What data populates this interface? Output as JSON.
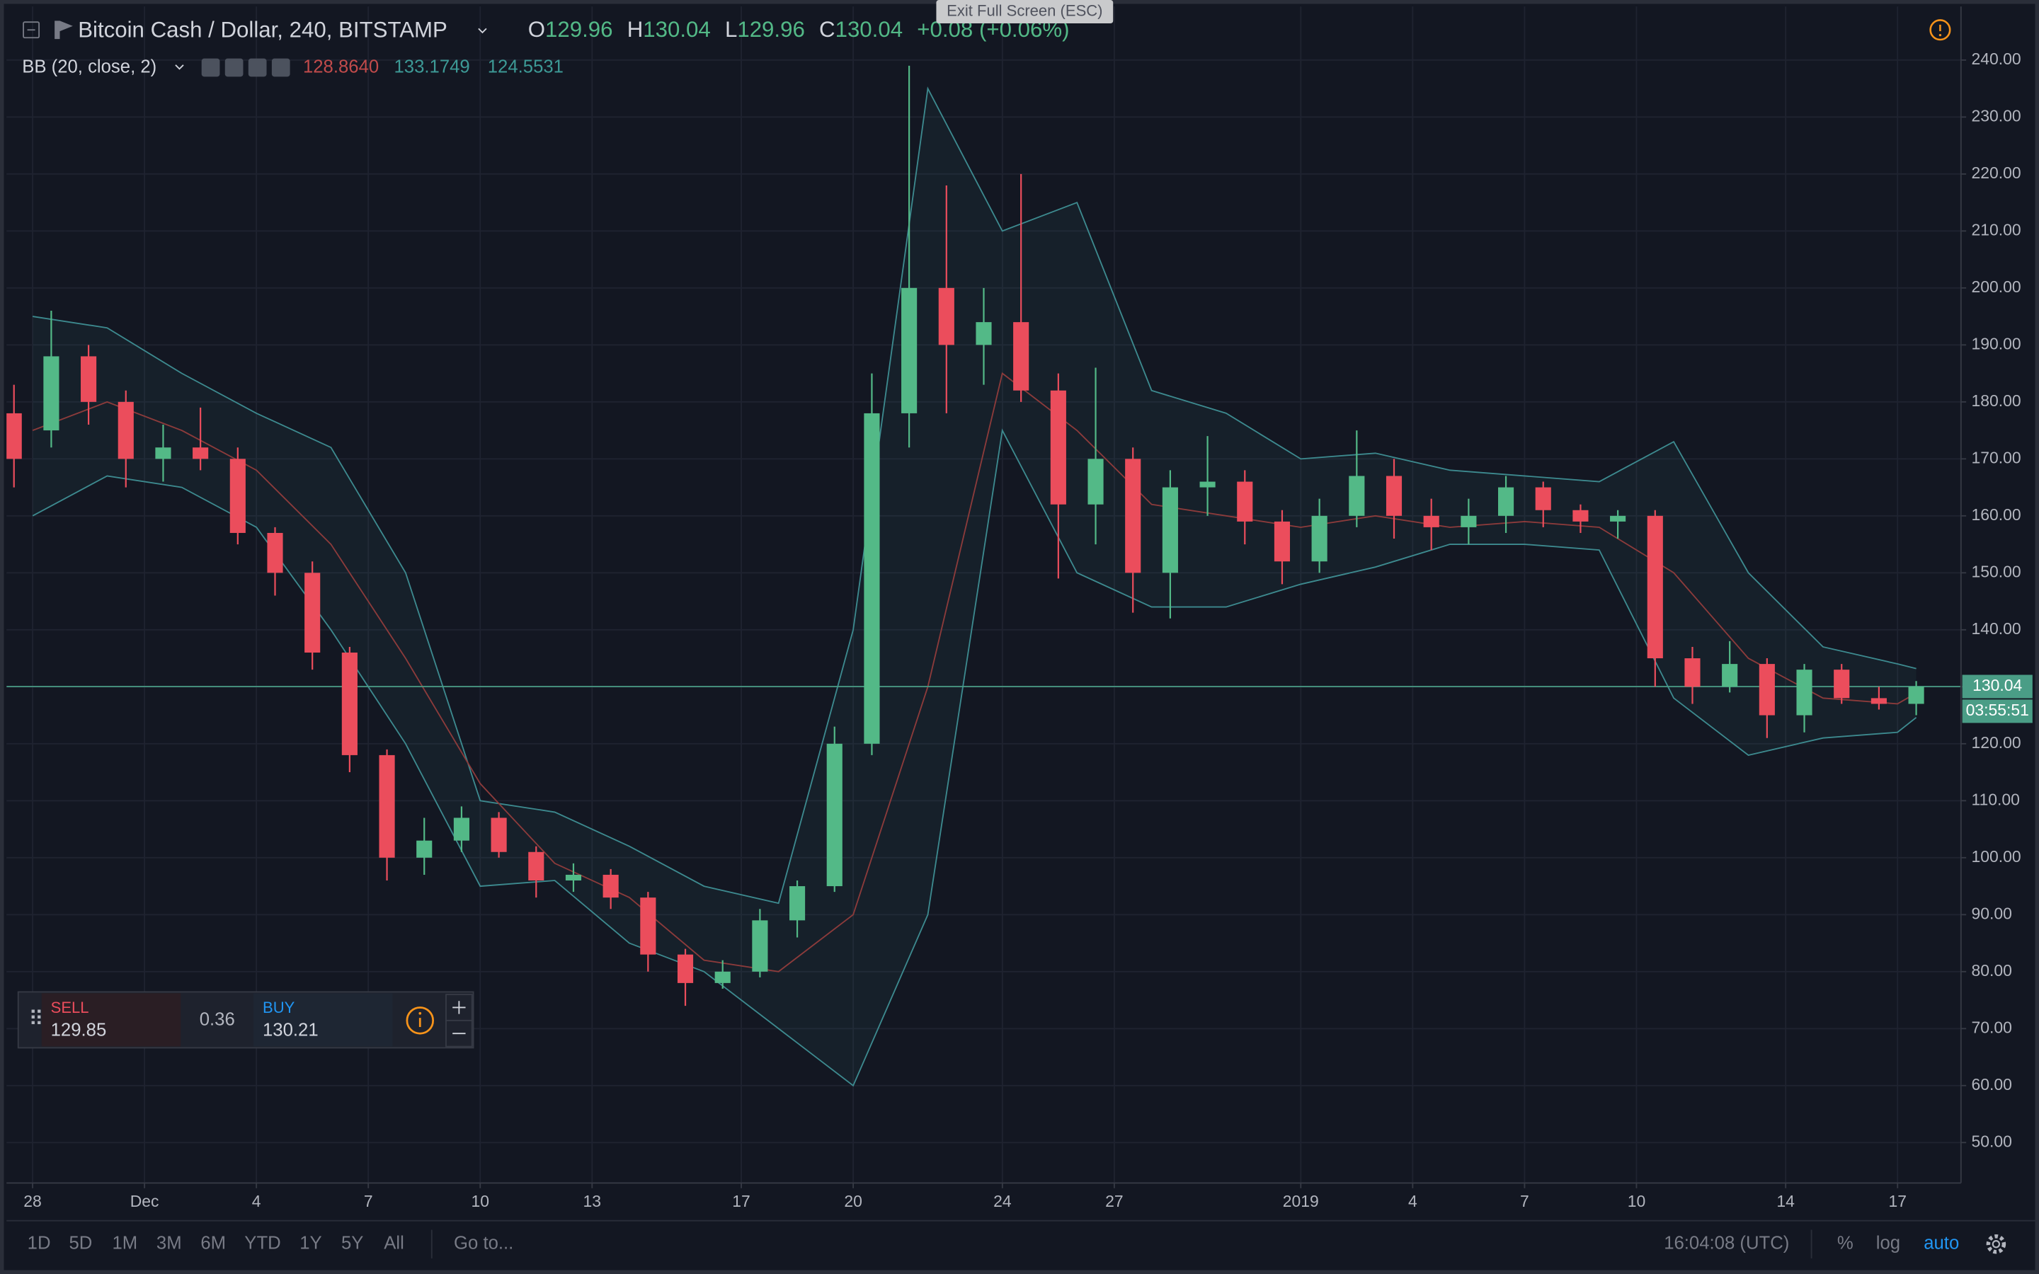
{
  "chart_data": {
    "type": "candlestick",
    "x": [
      -0.5,
      0.5,
      1.5,
      2.5,
      3.5,
      4.5,
      5.5,
      6.5,
      7.5,
      8.5,
      9.5,
      10.5,
      11.5,
      12.5,
      13.5,
      14.5,
      15.5,
      16.5,
      17.5,
      18.5,
      19.5,
      20.5,
      21.5,
      22.5,
      23.5,
      24.5,
      25.5,
      26.5,
      27.5,
      28.5,
      29.5,
      30.5,
      31.5,
      32.5,
      33.5,
      34.5,
      35.5,
      36.5,
      37.5,
      38.5,
      39.5,
      40.5,
      41.5,
      42.5,
      43.5,
      44.5,
      45.5,
      46.5,
      47.5,
      48.5,
      49.5,
      50.5
    ],
    "open": [
      178,
      175,
      188,
      180,
      170,
      172,
      170,
      157,
      150,
      136,
      118,
      100,
      103,
      107,
      101,
      96,
      97,
      93,
      83,
      78,
      80,
      89,
      95,
      120,
      178,
      200,
      190,
      194,
      182,
      162,
      170,
      150,
      165,
      166,
      159,
      152,
      160,
      167,
      160,
      158,
      160,
      165,
      161,
      159,
      160,
      135,
      130,
      134,
      125,
      133,
      128,
      127
    ],
    "high": [
      183,
      196,
      190,
      182,
      176,
      179,
      172,
      158,
      152,
      137,
      119,
      107,
      109,
      108,
      102,
      99,
      98,
      94,
      84,
      82,
      91,
      96,
      123,
      185,
      239,
      218,
      200,
      220,
      185,
      186,
      172,
      168,
      174,
      168,
      161,
      163,
      175,
      170,
      163,
      163,
      167,
      166,
      162,
      161,
      161,
      137,
      138,
      135,
      134,
      134,
      130,
      131
    ],
    "low": [
      165,
      172,
      176,
      165,
      166,
      168,
      155,
      146,
      133,
      115,
      96,
      97,
      101,
      100,
      93,
      94,
      91,
      80,
      74,
      77,
      79,
      86,
      94,
      118,
      172,
      178,
      183,
      180,
      149,
      155,
      143,
      142,
      160,
      155,
      148,
      150,
      158,
      156,
      154,
      155,
      157,
      158,
      157,
      156,
      130,
      127,
      129,
      121,
      122,
      127,
      126,
      125
    ],
    "close": [
      170,
      188,
      180,
      170,
      172,
      170,
      157,
      150,
      136,
      118,
      100,
      103,
      107,
      101,
      96,
      97,
      93,
      83,
      78,
      80,
      89,
      95,
      120,
      178,
      200,
      190,
      194,
      182,
      162,
      170,
      150,
      165,
      166,
      159,
      152,
      160,
      167,
      160,
      158,
      160,
      165,
      161,
      159,
      160,
      135,
      130,
      134,
      125,
      133,
      128,
      127,
      130.04
    ],
    "up_color": "#53b987",
    "down_color": "#eb4d5c",
    "bb": {
      "x": [
        0,
        2,
        4,
        6,
        8,
        10,
        12,
        14,
        16,
        18,
        20,
        22,
        24,
        26,
        28,
        30,
        32,
        34,
        36,
        38,
        40,
        42,
        44,
        46,
        48,
        50,
        50.5
      ],
      "upper": [
        195,
        193,
        185,
        178,
        172,
        150,
        110,
        108,
        102,
        95,
        92,
        140,
        235,
        210,
        215,
        182,
        178,
        170,
        171,
        168,
        167,
        166,
        173,
        150,
        137,
        134,
        133.2
      ],
      "middle": [
        175,
        180,
        175,
        168,
        155,
        135,
        113,
        99,
        93,
        82,
        80,
        90,
        130,
        185,
        175,
        162,
        160,
        158,
        160,
        158,
        159,
        158,
        150,
        135,
        128,
        127,
        128.9
      ],
      "lower": [
        160,
        167,
        165,
        158,
        140,
        120,
        95,
        96,
        85,
        80,
        70,
        60,
        90,
        175,
        150,
        144,
        144,
        148,
        151,
        155,
        155,
        154,
        128,
        118,
        121,
        122,
        124.6
      ],
      "band_color": "#3d8a8f",
      "middle_color": "#8c3b3b"
    },
    "last_price": 130.04,
    "last_price_color": "#4a9d86",
    "xlim": [
      -0.7,
      51.7
    ],
    "xticks": [
      {
        "value": 0,
        "label": "28"
      },
      {
        "value": 3,
        "label": "Dec"
      },
      {
        "value": 6,
        "label": "4"
      },
      {
        "value": 9,
        "label": "7"
      },
      {
        "value": 12,
        "label": "10"
      },
      {
        "value": 15,
        "label": "13"
      },
      {
        "value": 19,
        "label": "17"
      },
      {
        "value": 22,
        "label": "20"
      },
      {
        "value": 26,
        "label": "24"
      },
      {
        "value": 29,
        "label": "27"
      },
      {
        "value": 34,
        "label": "2019"
      },
      {
        "value": 37,
        "label": "4"
      },
      {
        "value": 40,
        "label": "7"
      },
      {
        "value": 43,
        "label": "10"
      },
      {
        "value": 47,
        "label": "14"
      },
      {
        "value": 50,
        "label": "17"
      }
    ],
    "ylim": [
      42.9,
      249.4
    ],
    "yticks": [
      {
        "value": 50,
        "label": "50.00"
      },
      {
        "value": 60,
        "label": "60.00"
      },
      {
        "value": 70,
        "label": "70.00"
      },
      {
        "value": 80,
        "label": "80.00"
      },
      {
        "value": 90,
        "label": "90.00"
      },
      {
        "value": 100,
        "label": "100.00"
      },
      {
        "value": 110,
        "label": "110.00"
      },
      {
        "value": 120,
        "label": "120.00"
      },
      {
        "value": 130,
        "label": "130.00"
      },
      {
        "value": 140,
        "label": "140.00"
      },
      {
        "value": 150,
        "label": "150.00"
      },
      {
        "value": 160,
        "label": "160.00"
      },
      {
        "value": 170,
        "label": "170.00"
      },
      {
        "value": 180,
        "label": "180.00"
      },
      {
        "value": 190,
        "label": "190.00"
      },
      {
        "value": 200,
        "label": "200.00"
      },
      {
        "value": 210,
        "label": "210.00"
      },
      {
        "value": 220,
        "label": "220.00"
      },
      {
        "value": 230,
        "label": "230.00"
      },
      {
        "value": 240,
        "label": "240.00"
      }
    ],
    "grid": true
  },
  "ui": {
    "exit_fullscreen": "Exit Full Screen (ESC)",
    "header": {
      "symbol": "Bitcoin Cash / Dollar, 240, BITSTAMP",
      "ohlc": [
        {
          "label": "O",
          "value": "129.96"
        },
        {
          "label": "H",
          "value": "130.04"
        },
        {
          "label": "L",
          "value": "129.96"
        },
        {
          "label": "C",
          "value": "130.04"
        }
      ],
      "change": "+0.08 (+0.06%)"
    },
    "indicator": {
      "name": "BB (20, close, 2)",
      "values": [
        "128.8640",
        "133.1749",
        "124.5531"
      ]
    },
    "countdown": "03:55:51",
    "trade": {
      "sell_label": "SELL",
      "sell_price": "129.85",
      "spread": "0.36",
      "buy_label": "BUY",
      "buy_price": "130.21"
    },
    "toolbar": {
      "ranges": [
        "1D",
        "5D",
        "1M",
        "3M",
        "6M",
        "YTD",
        "1Y",
        "5Y",
        "All"
      ],
      "goto": "Go to...",
      "clock": "16:04:08 (UTC)",
      "percent": "%",
      "log": "log",
      "auto": "auto"
    }
  }
}
